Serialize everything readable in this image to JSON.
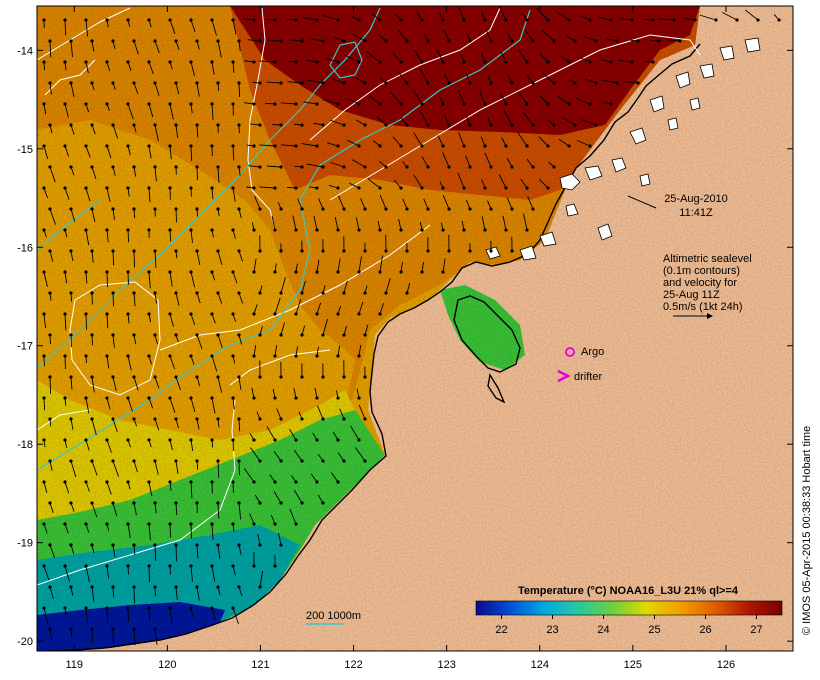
{
  "map": {
    "lon_range": [
      118.6,
      126.72
    ],
    "lat_range": [
      -20.1,
      -13.55
    ],
    "lon_ticks": [
      119,
      120,
      121,
      122,
      123,
      124,
      125,
      126
    ],
    "lat_ticks": [
      -14,
      -15,
      -16,
      -17,
      -18,
      -19,
      -20
    ],
    "lon_tick_labels": [
      "119",
      "120",
      "121",
      "122",
      "123",
      "124",
      "125",
      "126"
    ],
    "lat_tick_labels": [
      "-14",
      "-15",
      "-16",
      "-17",
      "-18",
      "-19",
      "-20"
    ],
    "colors": {
      "land": "#fbc59a",
      "sst_hot": "#8e0000",
      "sst_warm": "#d25000",
      "sst_orange": "#e48a00",
      "sst_amber": "#eca500",
      "sst_yellow": "#e8d000",
      "sst_green": "#3cc838",
      "sst_cyan": "#00a8a8",
      "sst_blue": "#0018a0",
      "contour_white": "#ffffff",
      "contour_cyan": "#3cc6c6",
      "argo": "#e000e0",
      "drifter": "#e000e0"
    }
  },
  "annotations": {
    "date": "25-Aug-2010",
    "time": "11:41Z",
    "altimetry_lines": [
      "Altimetric sealevel",
      "(0.1m contours)",
      "and velocity for",
      "25-Aug 11Z",
      "0.5m/s (1kt 24h)"
    ],
    "argo_label": "Argo",
    "drifter_label": "drifter",
    "isobath_label": "200  1000m",
    "credit": "© IMOS 05-Apr-2015 00:38:33 Hobart time"
  },
  "colorbar": {
    "title": "Temperature (°C) NOAA16_L3U 21% ql>=4",
    "range": [
      21.5,
      27.5
    ],
    "tick_values": [
      22,
      23,
      24,
      25,
      26,
      27
    ],
    "tick_labels": [
      "22",
      "23",
      "24",
      "25",
      "26",
      "27"
    ],
    "stops": [
      "#0a0a8c",
      "#0050d8",
      "#00a8e0",
      "#28c8a0",
      "#6ad040",
      "#e0d800",
      "#f0a000",
      "#e06000",
      "#b01800",
      "#7a0000"
    ]
  }
}
